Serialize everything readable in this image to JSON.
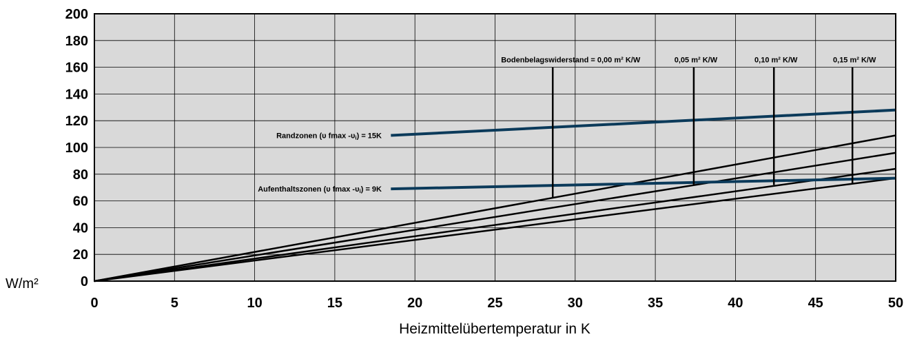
{
  "chart_data": {
    "type": "line",
    "xlabel": "Heizmittelübertemperatur in K",
    "ylabel": "W/m²",
    "xlim": [
      0,
      50
    ],
    "ylim": [
      0,
      200
    ],
    "x_ticks": [
      "0",
      "5",
      "10",
      "15",
      "20",
      "25",
      "30",
      "35",
      "40",
      "45",
      "50"
    ],
    "y_ticks": [
      "0",
      "20",
      "40",
      "60",
      "80",
      "100",
      "120",
      "140",
      "160",
      "180",
      "200"
    ],
    "grid": true,
    "plot_background": "#d9d9d9",
    "series": [
      {
        "color": "#000000",
        "points": [
          [
            0,
            0
          ],
          [
            50,
            109
          ]
        ]
      },
      {
        "color": "#000000",
        "points": [
          [
            0,
            0
          ],
          [
            50,
            96
          ]
        ]
      },
      {
        "color": "#000000",
        "points": [
          [
            0,
            0
          ],
          [
            50,
            84
          ]
        ]
      },
      {
        "color": "#000000",
        "points": [
          [
            0,
            0
          ],
          [
            50,
            77
          ]
        ]
      },
      {
        "color": "#0b3a5a",
        "points": [
          [
            18.5,
            109
          ],
          [
            50,
            128
          ]
        ]
      },
      {
        "color": "#0b3a5a",
        "points": [
          [
            18.5,
            69
          ],
          [
            50,
            77
          ]
        ]
      }
    ],
    "resistance_markers": [
      {
        "label": "Bodenbelagswiderstand = 0,00 m² K/W",
        "x": 28.6,
        "y_top": 160,
        "y_bottom": 62
      },
      {
        "label": "0,05 m² K/W",
        "x": 37.4,
        "y_top": 160,
        "y_bottom": 72
      },
      {
        "label": "0,10 m² K/W",
        "x": 42.4,
        "y_top": 160,
        "y_bottom": 72
      },
      {
        "label": "0,15 m² K/W",
        "x": 47.3,
        "y_top": 160,
        "y_bottom": 73
      }
    ],
    "annotations": [
      {
        "text": "Randzonen (υ fmax -υ",
        "sub": "i",
        "tail": ") = 15K",
        "x": 18.1,
        "y": 109
      },
      {
        "text": "Aufenthaltszonen (υ fmax -υ",
        "sub": "i",
        "tail": ") = 9K",
        "x": 18.1,
        "y": 69
      }
    ]
  }
}
